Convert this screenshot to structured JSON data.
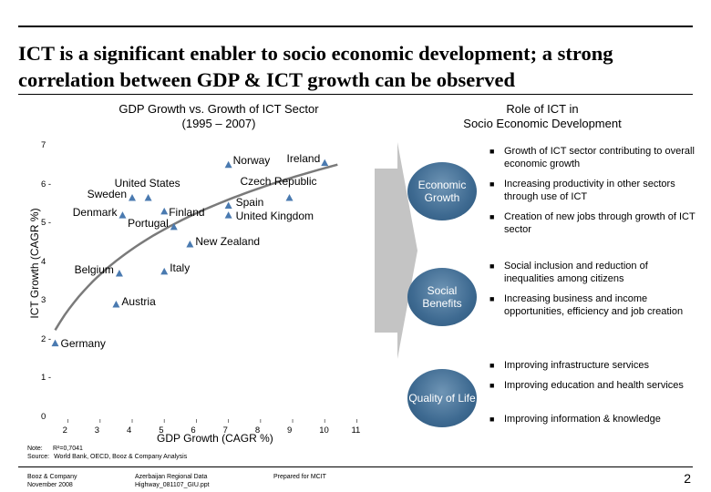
{
  "title": "ICT is a significant enabler to socio economic development; a strong correlation between GDP & ICT growth can be observed",
  "left_section": {
    "title_line1": "GDP Growth vs. Growth of ICT Sector",
    "title_line2": "(1995 – 2007)"
  },
  "right_section": {
    "title_line1": "Role of ICT in",
    "title_line2": "Socio Economic Development"
  },
  "chart_data": {
    "type": "scatter",
    "xlabel": "GDP Growth (CAGR %)",
    "ylabel": "ICT Growth (CAGR %)",
    "xlim": [
      1.5,
      11.3
    ],
    "ylim": [
      0,
      7
    ],
    "x_ticks": [
      "2",
      "3",
      "4",
      "5",
      "6",
      "7",
      "8",
      "9",
      "10",
      "11"
    ],
    "y_ticks": [
      "0",
      "1 -",
      "2 -",
      "3",
      "4",
      "5 -",
      "6 -",
      "7"
    ],
    "trendline": "logarithmic",
    "marker_color": "#4a7ab0",
    "points": [
      {
        "label": "Norway",
        "x": 7.0,
        "y": 6.5
      },
      {
        "label": "Ireland",
        "x": 10.0,
        "y": 6.55
      },
      {
        "label": "United States",
        "x": 4.5,
        "y": 5.65
      },
      {
        "label": "Sweden",
        "x": 4.0,
        "y": 5.65
      },
      {
        "label": "Czech Republic",
        "x": 8.9,
        "y": 5.65
      },
      {
        "label": "Finland",
        "x": 5.0,
        "y": 5.3
      },
      {
        "label": "Spain",
        "x": 7.0,
        "y": 5.45
      },
      {
        "label": "Denmark",
        "x": 3.7,
        "y": 5.2
      },
      {
        "label": "United Kingdom",
        "x": 7.0,
        "y": 5.2
      },
      {
        "label": "Portugal",
        "x": 5.3,
        "y": 4.9
      },
      {
        "label": "New Zealand",
        "x": 5.8,
        "y": 4.45
      },
      {
        "label": "Belgium",
        "x": 3.6,
        "y": 3.7
      },
      {
        "label": "Italy",
        "x": 5.0,
        "y": 3.75
      },
      {
        "label": "Austria",
        "x": 3.5,
        "y": 2.9
      },
      {
        "label": "Germany",
        "x": 1.6,
        "y": 1.9
      }
    ]
  },
  "roles": [
    {
      "circle": "Economic Growth",
      "bullets": [
        "Growth of ICT sector contributing to overall economic growth",
        "Increasing productivity in other sectors through use of ICT",
        "Creation of new jobs through growth of ICT sector"
      ]
    },
    {
      "circle": "Social Benefits",
      "bullets": [
        "Social inclusion and reduction of inequalities among citizens",
        "Increasing business and income opportunities, efficiency and job creation"
      ]
    },
    {
      "circle": "Quality of Life",
      "bullets": [
        "Improving infrastructure services",
        "Improving education and health services",
        "Improving information & knowledge"
      ]
    }
  ],
  "note": {
    "label": "Note:",
    "text": "R²=0,7041"
  },
  "source": {
    "label": "Source:",
    "text": "World Bank, OECD, Booz & Company Analysis"
  },
  "footer": {
    "company_line1": "Booz & Company",
    "company_line2": "November 2008",
    "doc_line1": "Azerbaijan Regional Data",
    "doc_line2": "Highway_081107_GIU.ppt",
    "prepared": "Prepared for MCIT",
    "page": "2"
  },
  "colors": {
    "marker": "#4a7ab0",
    "circle": "#3e6a91",
    "arrow": "#c4c4c4"
  }
}
